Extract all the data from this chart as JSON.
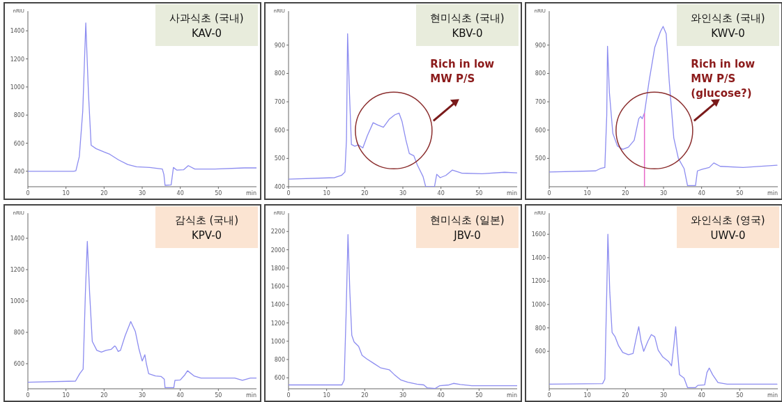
{
  "chart_data": [
    {
      "type": "line",
      "title": "사과식초 (국내)",
      "subtitle": "KAV-0",
      "xlabel": "min",
      "ylabel": "nRIU",
      "xlim": [
        0,
        60
      ],
      "xticks": [
        0,
        10,
        20,
        30,
        40,
        50
      ],
      "ylim": [
        290,
        1540
      ],
      "yticks": [
        400,
        600,
        800,
        1000,
        1200,
        1400
      ],
      "series": [
        {
          "color": "#8c8cf0",
          "x": [
            0,
            12,
            12.6,
            13.5,
            14.4,
            15.2,
            15.9,
            16.6,
            17.9,
            20,
            21.5,
            23.8,
            26.2,
            28.5,
            32,
            35.3,
            35.7,
            36,
            37.6,
            38.2,
            39.1,
            40.9,
            42.1,
            43.8,
            49.1,
            56.8,
            60
          ],
          "values": [
            400,
            400,
            403,
            505,
            827,
            1456,
            956,
            585,
            561,
            537,
            521,
            481,
            448,
            432,
            427,
            416,
            376,
            300,
            303,
            427,
            408,
            411,
            440,
            416,
            416,
            424,
            424
          ]
        }
      ]
    },
    {
      "type": "line",
      "title": "현미식초 (국내)",
      "subtitle": "KBV-0",
      "xlabel": "min",
      "ylabel": "nRIU",
      "xlim": [
        0,
        60
      ],
      "xticks": [
        0,
        10,
        20,
        30,
        40,
        50
      ],
      "ylim": [
        400,
        1020
      ],
      "yticks": [
        400,
        500,
        600,
        700,
        800,
        900
      ],
      "series": [
        {
          "color": "#8c8cf0",
          "x": [
            0,
            12.1,
            13.9,
            14.8,
            15.2,
            15.5,
            16,
            16.5,
            17.4,
            18.3,
            19.5,
            20.7,
            22.2,
            23.4,
            24.9,
            26.4,
            27.9,
            29,
            29.8,
            30.8,
            31.7,
            32.9,
            33.8,
            35.3,
            36,
            38.3,
            38.9,
            39.8,
            41.3,
            43,
            45.4,
            50.8,
            56.7,
            60
          ],
          "values": [
            427,
            432,
            440,
            452,
            565,
            940,
            726,
            549,
            543,
            548,
            537,
            581,
            626,
            618,
            610,
            638,
            654,
            660,
            630,
            565,
            517,
            509,
            477,
            436,
            400,
            400,
            444,
            432,
            440,
            459,
            448,
            446,
            451,
            449
          ]
        }
      ],
      "annotations": [
        "Rich in low MW P/S"
      ]
    },
    {
      "type": "line",
      "title": "와인식초 (국내)",
      "subtitle": "KWV-0",
      "xlabel": "min",
      "ylabel": "nRIU",
      "xlim": [
        0,
        60
      ],
      "xticks": [
        0,
        10,
        20,
        30,
        40,
        50
      ],
      "ylim": [
        400,
        1020
      ],
      "yticks": [
        500,
        600,
        700,
        800,
        900
      ],
      "series": [
        {
          "color": "#8c8cf0",
          "x": [
            0,
            12.2,
            13.4,
            14.6,
            15.1,
            15.3,
            15.8,
            16.7,
            17.9,
            19.3,
            20.8,
            22.3,
            23.5,
            24,
            24.4,
            25,
            26.2,
            27.7,
            29.2,
            29.9,
            30.7,
            31.5,
            32.7,
            33.9,
            35.4,
            36.3,
            38.4,
            38.9,
            40.2,
            42,
            43.2,
            44.9,
            50.9,
            59.8
          ],
          "values": [
            452,
            456,
            464,
            468,
            652,
            896,
            732,
            588,
            544,
            532,
            540,
            564,
            640,
            648,
            640,
            660,
            772,
            892,
            948,
            966,
            940,
            772,
            572,
            500,
            464,
            404,
            404,
            456,
            462,
            468,
            484,
            472,
            468,
            476
          ]
        }
      ],
      "ref_lines": [
        {
          "axis": "x",
          "value": 25,
          "color": "#e868c8"
        }
      ],
      "annotations": [
        "Rich in low MW P/S (glucose?)"
      ]
    },
    {
      "type": "line",
      "title": "감식초 (국내)",
      "subtitle": "KPV-0",
      "xlabel": "min",
      "ylabel": "nRIU",
      "xlim": [
        0,
        60
      ],
      "xticks": [
        0,
        10,
        20,
        30,
        40,
        50
      ],
      "ylim": [
        440,
        1560
      ],
      "yticks": [
        600,
        800,
        1000,
        1200,
        1400
      ],
      "series": [
        {
          "color": "#8c8cf0",
          "x": [
            0,
            12.5,
            13.6,
            14.5,
            15.1,
            15.6,
            16.2,
            16.9,
            18.1,
            19.3,
            20.5,
            21.9,
            22.8,
            23.1,
            23.7,
            24.3,
            25.5,
            27,
            28.2,
            29.1,
            30,
            30.7,
            31.1,
            31.7,
            33.5,
            35,
            35.8,
            36,
            38.3,
            38.6,
            40,
            41.2,
            41.9,
            43.6,
            45.4,
            54.3,
            56.3,
            58.4,
            60
          ],
          "values": [
            482,
            489,
            536,
            565,
            1054,
            1380,
            1054,
            742,
            685,
            674,
            685,
            692,
            713,
            706,
            678,
            685,
            777,
            869,
            806,
            699,
            617,
            657,
            600,
            536,
            522,
            518,
            501,
            447,
            447,
            494,
            496,
            529,
            555,
            522,
            508,
            508,
            494,
            508,
            508
          ]
        }
      ]
    },
    {
      "type": "line",
      "title": "현미식초 (일본)",
      "subtitle": "JBV-0",
      "xlabel": "min",
      "ylabel": "nRIU",
      "xlim": [
        0,
        60
      ],
      "xticks": [
        0,
        10,
        20,
        30,
        40,
        50
      ],
      "ylim": [
        480,
        2400
      ],
      "yticks": [
        600,
        800,
        1000,
        1200,
        1400,
        1600,
        1800,
        2000,
        2200
      ],
      "series": [
        {
          "color": "#8c8cf0",
          "x": [
            0,
            14,
            14.6,
            15.1,
            15.6,
            16.1,
            16.6,
            17.2,
            18.4,
            19.3,
            20.5,
            22.3,
            24.1,
            26.5,
            27.7,
            29.5,
            31.3,
            33.7,
            35.5,
            36.4,
            38.5,
            39.7,
            42.1,
            43.3,
            45.1,
            48.1,
            60
          ],
          "values": [
            522,
            522,
            576,
            1285,
            2167,
            1530,
            1065,
            992,
            943,
            845,
            808,
            759,
            710,
            686,
            637,
            576,
            551,
            531,
            522,
            490,
            483,
            514,
            522,
            539,
            527,
            514,
            514
          ]
        }
      ]
    },
    {
      "type": "line",
      "title": "와인식초 (영국)",
      "subtitle": "UWV-0",
      "xlabel": "min",
      "ylabel": "nRIU",
      "xlim": [
        0,
        60
      ],
      "xticks": [
        0,
        10,
        20,
        30,
        40,
        50
      ],
      "ylim": [
        280,
        1780
      ],
      "yticks": [
        600,
        800,
        1000,
        1200,
        1400,
        1600
      ],
      "series": [
        {
          "color": "#8c8cf0",
          "x": [
            0,
            14,
            14.6,
            15.1,
            15.4,
            15.9,
            16.5,
            17.3,
            18.2,
            19.3,
            20.8,
            22,
            22.9,
            23.5,
            24.1,
            24.8,
            25.9,
            26.8,
            27.7,
            28.6,
            29.8,
            31.3,
            32.1,
            32.7,
            33.2,
            33.6,
            34.2,
            35.4,
            36.3,
            38.4,
            39,
            40.8,
            41.4,
            42,
            42.9,
            44.3,
            46.7,
            59.8
          ],
          "values": [
            320,
            324,
            362,
            1105,
            1600,
            1105,
            762,
            724,
            648,
            590,
            571,
            581,
            724,
            810,
            686,
            600,
            686,
            743,
            724,
            610,
            552,
            514,
            476,
            648,
            810,
            629,
            400,
            371,
            290,
            290,
            309,
            314,
            419,
            457,
            400,
            333,
            320,
            320
          ]
        }
      ]
    }
  ]
}
